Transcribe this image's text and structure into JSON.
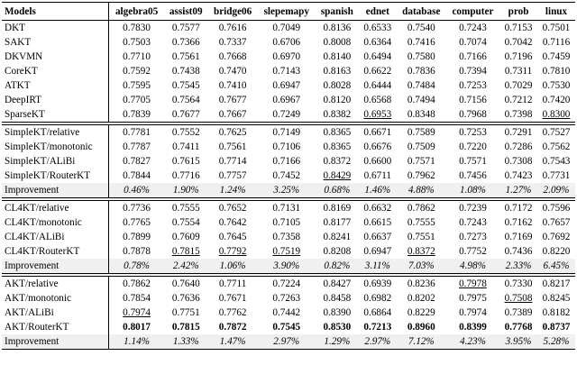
{
  "table": {
    "header": [
      "Models",
      "algebra05",
      "assist09",
      "bridge06",
      "slepemapy",
      "spanish",
      "ednet",
      "database",
      "computer",
      "prob",
      "linux"
    ],
    "groups": [
      {
        "rows": [
          [
            "DKT",
            "0.7830",
            "0.7577",
            "0.7616",
            "0.7049",
            "0.8136",
            "0.6533",
            "0.7540",
            "0.7243",
            "0.7153",
            "0.7501"
          ],
          [
            "SAKT",
            "0.7503",
            "0.7366",
            "0.7337",
            "0.6706",
            "0.8008",
            "0.6364",
            "0.7416",
            "0.7074",
            "0.7042",
            "0.7116"
          ],
          [
            "DKVMN",
            "0.7710",
            "0.7561",
            "0.7668",
            "0.6970",
            "0.8140",
            "0.6494",
            "0.7580",
            "0.7166",
            "0.7196",
            "0.7459"
          ],
          [
            "CoreKT",
            "0.7592",
            "0.7438",
            "0.7470",
            "0.7143",
            "0.8163",
            "0.6622",
            "0.7836",
            "0.7394",
            "0.7311",
            "0.7810"
          ],
          [
            "ATKT",
            "0.7595",
            "0.7545",
            "0.7410",
            "0.6947",
            "0.8028",
            "0.6444",
            "0.7484",
            "0.7253",
            "0.7029",
            "0.7530"
          ],
          [
            "DeepIRT",
            "0.7705",
            "0.7564",
            "0.7677",
            "0.6967",
            "0.8120",
            "0.6568",
            "0.7494",
            "0.7156",
            "0.7212",
            "0.7420"
          ],
          [
            "SparseKT",
            "0.7839",
            "0.7677",
            "0.7667",
            "0.7249",
            "0.8382",
            "0.6953",
            "0.8348",
            "0.7968",
            "0.7398",
            "0.8300"
          ]
        ]
      },
      {
        "rows": [
          [
            "SimpleKT/relative",
            "0.7781",
            "0.7552",
            "0.7625",
            "0.7149",
            "0.8365",
            "0.6671",
            "0.7589",
            "0.7253",
            "0.7291",
            "0.7527"
          ],
          [
            "SimpleKT/monotonic",
            "0.7787",
            "0.7411",
            "0.7561",
            "0.7106",
            "0.8365",
            "0.6676",
            "0.7509",
            "0.7220",
            "0.7286",
            "0.7562"
          ],
          [
            "SimpleKT/ALiBi",
            "0.7827",
            "0.7615",
            "0.7714",
            "0.7166",
            "0.8372",
            "0.6600",
            "0.7571",
            "0.7571",
            "0.7308",
            "0.7543"
          ],
          [
            "SimpleKT/RouterKT",
            "0.7844",
            "0.7716",
            "0.7757",
            "0.7452",
            "0.8429",
            "0.6711",
            "0.7962",
            "0.7456",
            "0.7423",
            "0.7731"
          ],
          [
            "Improvement",
            "0.46%",
            "1.90%",
            "1.24%",
            "3.25%",
            "0.68%",
            "1.46%",
            "4.88%",
            "1.08%",
            "1.27%",
            "2.09%"
          ]
        ]
      },
      {
        "rows": [
          [
            "CL4KT/relative",
            "0.7736",
            "0.7555",
            "0.7652",
            "0.7131",
            "0.8169",
            "0.6632",
            "0.7862",
            "0.7239",
            "0.7172",
            "0.7596"
          ],
          [
            "CL4KT/monotonic",
            "0.7765",
            "0.7554",
            "0.7642",
            "0.7105",
            "0.8177",
            "0.6615",
            "0.7555",
            "0.7243",
            "0.7162",
            "0.7657"
          ],
          [
            "CL4KT/ALiBi",
            "0.7899",
            "0.7609",
            "0.7645",
            "0.7358",
            "0.8241",
            "0.6637",
            "0.7551",
            "0.7273",
            "0.7169",
            "0.7692"
          ],
          [
            "CL4KT/RouterKT",
            "0.7878",
            "0.7815",
            "0.7792",
            "0.7519",
            "0.8208",
            "0.6947",
            "0.8372",
            "0.7752",
            "0.7436",
            "0.8220"
          ],
          [
            "Improvement",
            "0.78%",
            "2.42%",
            "1.06%",
            "3.90%",
            "0.82%",
            "3.11%",
            "7.03%",
            "4.98%",
            "2.33%",
            "6.45%"
          ]
        ]
      },
      {
        "rows": [
          [
            "AKT/relative",
            "0.7862",
            "0.7640",
            "0.7711",
            "0.7224",
            "0.8427",
            "0.6939",
            "0.8236",
            "0.7978",
            "0.7330",
            "0.8217"
          ],
          [
            "AKT/monotonic",
            "0.7854",
            "0.7636",
            "0.7671",
            "0.7263",
            "0.8458",
            "0.6982",
            "0.8202",
            "0.7975",
            "0.7508",
            "0.8245"
          ],
          [
            "AKT/ALiBi",
            "0.7974",
            "0.7751",
            "0.7762",
            "0.7442",
            "0.8390",
            "0.6864",
            "0.8229",
            "0.7974",
            "0.7389",
            "0.8182"
          ],
          [
            "AKT/RouterKT",
            "0.8017",
            "0.7815",
            "0.7872",
            "0.7545",
            "0.8530",
            "0.7213",
            "0.8960",
            "0.8399",
            "0.7768",
            "0.8737"
          ],
          [
            "Improvement",
            "1.14%",
            "1.33%",
            "1.47%",
            "2.97%",
            "1.29%",
            "2.97%",
            "7.12%",
            "4.23%",
            "3.95%",
            "5.28%"
          ]
        ]
      }
    ]
  }
}
